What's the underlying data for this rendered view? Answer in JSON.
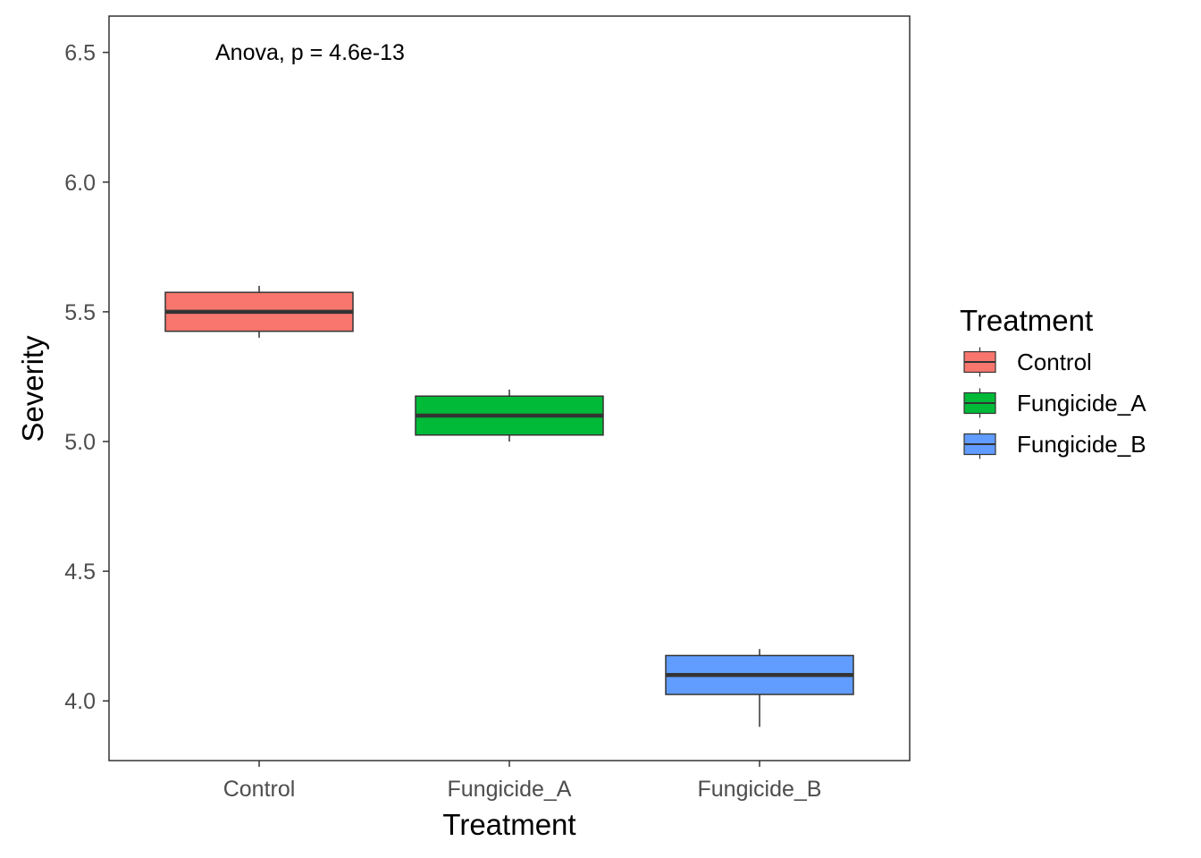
{
  "chart_data": {
    "type": "boxplot",
    "annotation": "Anova, p = 4.6e-13",
    "xlabel": "Treatment",
    "ylabel": "Severity",
    "ylim": [
      3.77,
      6.64
    ],
    "yticks": [
      "4.0",
      "4.5",
      "5.0",
      "5.5",
      "6.0",
      "6.5"
    ],
    "ytick_values": [
      4.0,
      4.5,
      5.0,
      5.5,
      6.0,
      6.5
    ],
    "grid": false,
    "legend": {
      "title": "Treatment",
      "position": "right",
      "items": [
        "Control",
        "Fungicide_A",
        "Fungicide_B"
      ]
    },
    "categories": [
      "Control",
      "Fungicide_A",
      "Fungicide_B"
    ],
    "boxes": [
      {
        "category": "Control",
        "min": 5.4,
        "q1": 5.425,
        "median": 5.5,
        "q3": 5.575,
        "max": 5.6,
        "color": "#F8766D"
      },
      {
        "category": "Fungicide_A",
        "min": 5.0,
        "q1": 5.025,
        "median": 5.1,
        "q3": 5.175,
        "max": 5.2,
        "color": "#00BA38"
      },
      {
        "category": "Fungicide_B",
        "min": 3.9,
        "q1": 4.025,
        "median": 4.1,
        "q3": 4.175,
        "max": 4.2,
        "color": "#619CFF"
      }
    ]
  }
}
